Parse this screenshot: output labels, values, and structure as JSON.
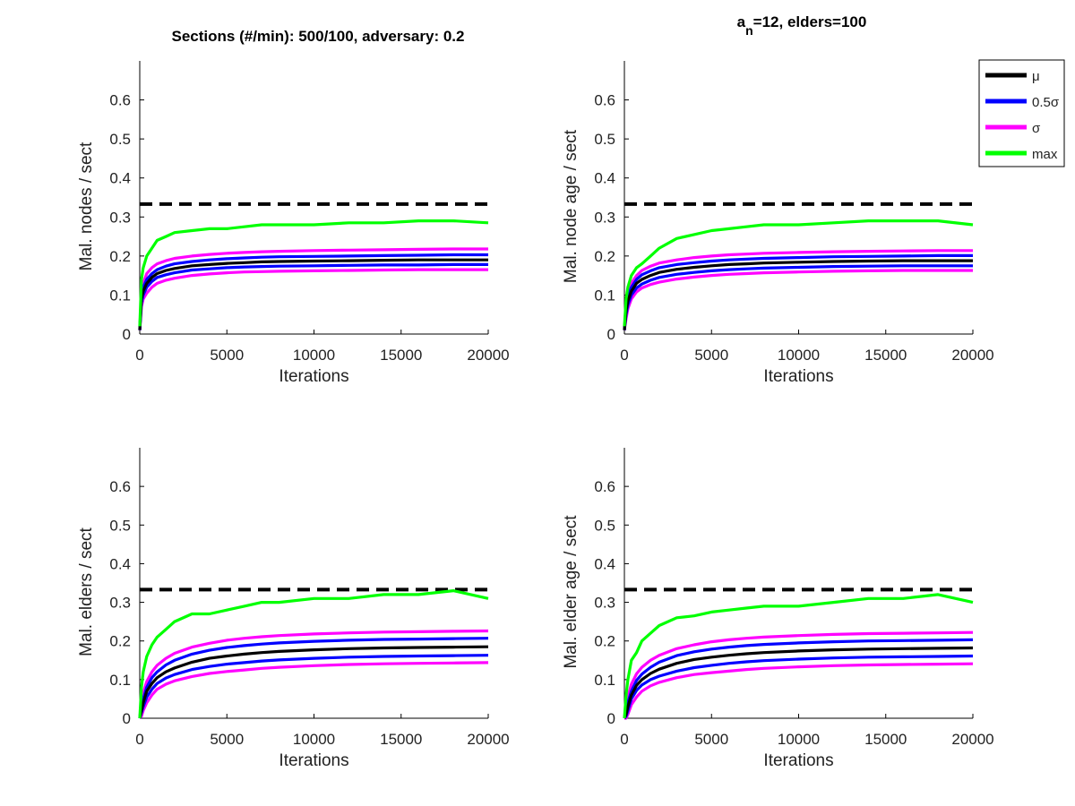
{
  "titles": {
    "left": "Sections (#/min): 500/100, adversary: 0.2",
    "right_base": "a",
    "right_sub": "n",
    "right_rest": "=12, elders=100"
  },
  "legend": [
    {
      "label": "μ",
      "color": "#000000"
    },
    {
      "label": "0.5σ",
      "color": "#0000ff"
    },
    {
      "label": "σ",
      "color": "#ff00ff"
    },
    {
      "label": "max",
      "color": "#00ff00"
    }
  ],
  "chart_data": [
    {
      "type": "line",
      "xlabel": "Iterations",
      "ylabel": "Mal. nodes / sect",
      "xlim": [
        0,
        20000
      ],
      "ylim": [
        0,
        0.7
      ],
      "xticks": [
        "0",
        "5000",
        "10000",
        "15000",
        "20000"
      ],
      "yticks": [
        "0",
        "0.1",
        "0.2",
        "0.3",
        "0.4",
        "0.5",
        "0.6"
      ],
      "threshold": 0.333,
      "x": [
        0,
        100,
        200,
        400,
        700,
        1000,
        1500,
        2000,
        3000,
        4000,
        5000,
        6000,
        7000,
        8000,
        10000,
        12000,
        14000,
        16000,
        18000,
        20000
      ],
      "series": [
        {
          "name": "μ",
          "color": "#000000",
          "values": [
            0.01,
            0.09,
            0.11,
            0.13,
            0.145,
            0.155,
            0.163,
            0.168,
            0.175,
            0.178,
            0.181,
            0.183,
            0.185,
            0.186,
            0.187,
            0.188,
            0.189,
            0.19,
            0.19,
            0.19
          ]
        },
        {
          "name": "0.5σ",
          "color": "#0000ff",
          "values": [
            0.01,
            0.1,
            0.12,
            0.14,
            0.155,
            0.165,
            0.174,
            0.18,
            0.186,
            0.19,
            0.193,
            0.195,
            0.197,
            0.198,
            0.199,
            0.2,
            0.201,
            0.202,
            0.203,
            0.203
          ]
        },
        {
          "name": "0.5σ",
          "color": "#0000ff",
          "values": [
            0.01,
            0.08,
            0.1,
            0.12,
            0.135,
            0.145,
            0.152,
            0.157,
            0.164,
            0.167,
            0.17,
            0.172,
            0.173,
            0.174,
            0.175,
            0.176,
            0.177,
            0.177,
            0.178,
            0.178
          ]
        },
        {
          "name": "σ",
          "color": "#ff00ff",
          "values": [
            0.01,
            0.11,
            0.13,
            0.155,
            0.17,
            0.18,
            0.188,
            0.194,
            0.2,
            0.204,
            0.207,
            0.209,
            0.211,
            0.212,
            0.214,
            0.215,
            0.216,
            0.217,
            0.218,
            0.218
          ]
        },
        {
          "name": "σ",
          "color": "#ff00ff",
          "values": [
            0.01,
            0.07,
            0.09,
            0.105,
            0.12,
            0.13,
            0.138,
            0.143,
            0.15,
            0.154,
            0.157,
            0.159,
            0.16,
            0.161,
            0.162,
            0.163,
            0.164,
            0.165,
            0.165,
            0.165
          ]
        },
        {
          "name": "max",
          "color": "#00ff00",
          "values": [
            0.02,
            0.14,
            0.17,
            0.2,
            0.22,
            0.24,
            0.25,
            0.26,
            0.265,
            0.27,
            0.27,
            0.275,
            0.28,
            0.28,
            0.28,
            0.285,
            0.285,
            0.29,
            0.29,
            0.285
          ]
        }
      ]
    },
    {
      "type": "line",
      "xlabel": "Iterations",
      "ylabel": "Mal. node age / sect",
      "xlim": [
        0,
        20000
      ],
      "ylim": [
        0,
        0.7
      ],
      "xticks": [
        "0",
        "5000",
        "10000",
        "15000",
        "20000"
      ],
      "yticks": [
        "0",
        "0.1",
        "0.2",
        "0.3",
        "0.4",
        "0.5",
        "0.6"
      ],
      "threshold": 0.333,
      "x": [
        0,
        100,
        200,
        400,
        700,
        1000,
        1500,
        2000,
        3000,
        4000,
        5000,
        6000,
        7000,
        8000,
        10000,
        12000,
        14000,
        16000,
        18000,
        20000
      ],
      "series": [
        {
          "name": "μ",
          "color": "#000000",
          "values": [
            0.01,
            0.06,
            0.085,
            0.11,
            0.13,
            0.14,
            0.15,
            0.158,
            0.166,
            0.171,
            0.175,
            0.178,
            0.18,
            0.182,
            0.184,
            0.186,
            0.187,
            0.188,
            0.188,
            0.188
          ]
        },
        {
          "name": "0.5σ",
          "color": "#0000ff",
          "values": [
            0.01,
            0.07,
            0.095,
            0.12,
            0.14,
            0.152,
            0.162,
            0.17,
            0.178,
            0.183,
            0.187,
            0.19,
            0.192,
            0.194,
            0.196,
            0.198,
            0.199,
            0.2,
            0.201,
            0.201
          ]
        },
        {
          "name": "0.5σ",
          "color": "#0000ff",
          "values": [
            0.01,
            0.05,
            0.075,
            0.1,
            0.118,
            0.128,
            0.138,
            0.145,
            0.153,
            0.158,
            0.162,
            0.165,
            0.167,
            0.169,
            0.171,
            0.173,
            0.174,
            0.175,
            0.175,
            0.175
          ]
        },
        {
          "name": "σ",
          "color": "#ff00ff",
          "values": [
            0.01,
            0.08,
            0.105,
            0.13,
            0.15,
            0.163,
            0.174,
            0.182,
            0.19,
            0.196,
            0.2,
            0.203,
            0.205,
            0.207,
            0.209,
            0.211,
            0.212,
            0.213,
            0.214,
            0.214
          ]
        },
        {
          "name": "σ",
          "color": "#ff00ff",
          "values": [
            0.01,
            0.04,
            0.065,
            0.09,
            0.108,
            0.118,
            0.127,
            0.133,
            0.141,
            0.146,
            0.15,
            0.153,
            0.155,
            0.157,
            0.159,
            0.161,
            0.162,
            0.163,
            0.163,
            0.163
          ]
        },
        {
          "name": "max",
          "color": "#00ff00",
          "values": [
            0.02,
            0.09,
            0.12,
            0.15,
            0.17,
            0.18,
            0.2,
            0.22,
            0.245,
            0.255,
            0.265,
            0.27,
            0.275,
            0.28,
            0.28,
            0.285,
            0.29,
            0.29,
            0.29,
            0.28
          ]
        }
      ]
    },
    {
      "type": "line",
      "xlabel": "Iterations",
      "ylabel": "Mal. elders / sect",
      "xlim": [
        0,
        20000
      ],
      "ylim": [
        0,
        0.7
      ],
      "xticks": [
        "0",
        "5000",
        "10000",
        "15000",
        "20000"
      ],
      "yticks": [
        "0",
        "0.1",
        "0.2",
        "0.3",
        "0.4",
        "0.5",
        "0.6"
      ],
      "threshold": 0.333,
      "x": [
        0,
        100,
        200,
        400,
        700,
        1000,
        1500,
        2000,
        3000,
        4000,
        5000,
        6000,
        7000,
        8000,
        10000,
        12000,
        14000,
        16000,
        18000,
        20000
      ],
      "series": [
        {
          "name": "μ",
          "color": "#000000",
          "values": [
            0.0,
            0.02,
            0.04,
            0.07,
            0.09,
            0.105,
            0.12,
            0.13,
            0.145,
            0.155,
            0.161,
            0.166,
            0.17,
            0.173,
            0.177,
            0.18,
            0.182,
            0.183,
            0.184,
            0.185
          ]
        },
        {
          "name": "0.5σ",
          "color": "#0000ff",
          "values": [
            0.0,
            0.03,
            0.05,
            0.08,
            0.105,
            0.12,
            0.138,
            0.15,
            0.166,
            0.176,
            0.183,
            0.188,
            0.192,
            0.195,
            0.199,
            0.202,
            0.204,
            0.205,
            0.206,
            0.207
          ]
        },
        {
          "name": "0.5σ",
          "color": "#0000ff",
          "values": [
            0.0,
            0.015,
            0.03,
            0.055,
            0.075,
            0.09,
            0.104,
            0.113,
            0.126,
            0.134,
            0.14,
            0.144,
            0.148,
            0.151,
            0.155,
            0.158,
            0.16,
            0.161,
            0.162,
            0.163
          ]
        },
        {
          "name": "σ",
          "color": "#ff00ff",
          "values": [
            0.0,
            0.04,
            0.065,
            0.095,
            0.12,
            0.137,
            0.155,
            0.168,
            0.184,
            0.194,
            0.202,
            0.207,
            0.211,
            0.214,
            0.218,
            0.221,
            0.223,
            0.224,
            0.225,
            0.226
          ]
        },
        {
          "name": "σ",
          "color": "#ff00ff",
          "values": [
            0.0,
            0.005,
            0.02,
            0.04,
            0.06,
            0.075,
            0.088,
            0.097,
            0.108,
            0.116,
            0.121,
            0.125,
            0.129,
            0.132,
            0.136,
            0.139,
            0.141,
            0.142,
            0.143,
            0.144
          ]
        },
        {
          "name": "max",
          "color": "#00ff00",
          "values": [
            0.0,
            0.08,
            0.12,
            0.16,
            0.19,
            0.21,
            0.23,
            0.25,
            0.27,
            0.27,
            0.28,
            0.29,
            0.3,
            0.3,
            0.31,
            0.31,
            0.32,
            0.32,
            0.33,
            0.31
          ]
        }
      ]
    },
    {
      "type": "line",
      "xlabel": "Iterations",
      "ylabel": "Mal. elder age / sect",
      "xlim": [
        0,
        20000
      ],
      "ylim": [
        0,
        0.7
      ],
      "xticks": [
        "0",
        "5000",
        "10000",
        "15000",
        "20000"
      ],
      "yticks": [
        "0",
        "0.1",
        "0.2",
        "0.3",
        "0.4",
        "0.5",
        "0.6"
      ],
      "threshold": 0.333,
      "x": [
        0,
        100,
        200,
        400,
        700,
        1000,
        1500,
        2000,
        3000,
        4000,
        5000,
        6000,
        7000,
        8000,
        10000,
        12000,
        14000,
        16000,
        18000,
        20000
      ],
      "series": [
        {
          "name": "μ",
          "color": "#000000",
          "values": [
            0.0,
            0.01,
            0.03,
            0.06,
            0.085,
            0.1,
            0.116,
            0.127,
            0.142,
            0.152,
            0.158,
            0.163,
            0.167,
            0.17,
            0.174,
            0.177,
            0.179,
            0.18,
            0.181,
            0.182
          ]
        },
        {
          "name": "0.5σ",
          "color": "#0000ff",
          "values": [
            0.0,
            0.02,
            0.04,
            0.07,
            0.098,
            0.114,
            0.132,
            0.145,
            0.162,
            0.172,
            0.179,
            0.184,
            0.188,
            0.191,
            0.195,
            0.198,
            0.2,
            0.201,
            0.202,
            0.203
          ]
        },
        {
          "name": "0.5σ",
          "color": "#0000ff",
          "values": [
            0.0,
            0.005,
            0.02,
            0.05,
            0.072,
            0.086,
            0.1,
            0.109,
            0.122,
            0.131,
            0.137,
            0.142,
            0.146,
            0.149,
            0.153,
            0.156,
            0.158,
            0.159,
            0.16,
            0.161
          ]
        },
        {
          "name": "σ",
          "color": "#ff00ff",
          "values": [
            0.0,
            0.03,
            0.055,
            0.088,
            0.115,
            0.132,
            0.15,
            0.163,
            0.18,
            0.19,
            0.198,
            0.203,
            0.207,
            0.21,
            0.214,
            0.217,
            0.219,
            0.22,
            0.221,
            0.222
          ]
        },
        {
          "name": "σ",
          "color": "#ff00ff",
          "values": [
            0.0,
            0.0,
            0.01,
            0.035,
            0.055,
            0.07,
            0.084,
            0.093,
            0.105,
            0.113,
            0.118,
            0.122,
            0.126,
            0.129,
            0.133,
            0.136,
            0.138,
            0.139,
            0.14,
            0.141
          ]
        },
        {
          "name": "max",
          "color": "#00ff00",
          "values": [
            0.0,
            0.06,
            0.1,
            0.15,
            0.17,
            0.2,
            0.22,
            0.24,
            0.26,
            0.265,
            0.275,
            0.28,
            0.285,
            0.29,
            0.29,
            0.3,
            0.31,
            0.31,
            0.32,
            0.3
          ]
        }
      ]
    }
  ]
}
